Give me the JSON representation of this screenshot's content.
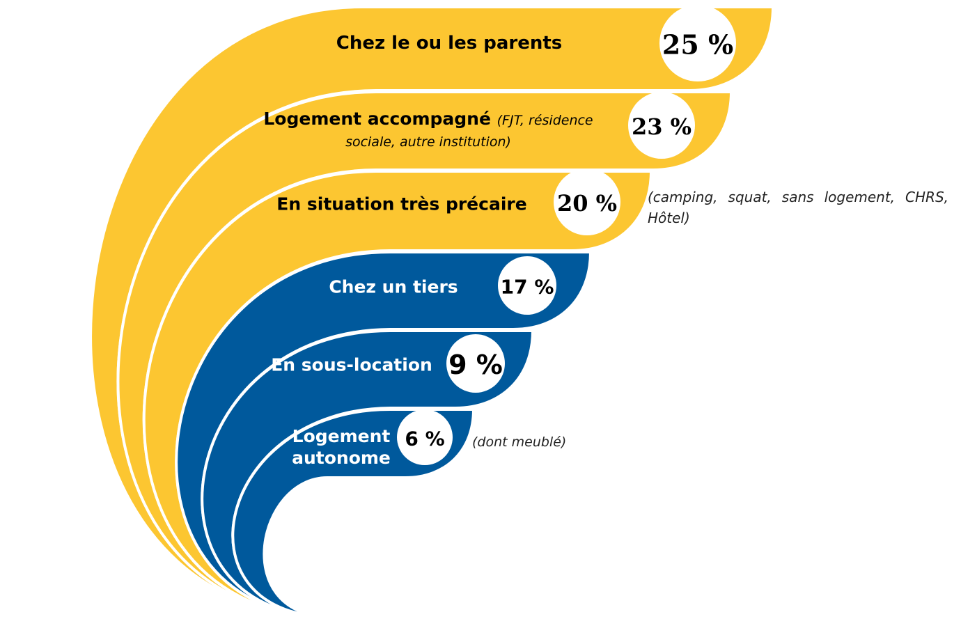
{
  "items": [
    {
      "label": "Chez le ou les parents",
      "value": "25 %"
    },
    {
      "label": "Logement accompagné",
      "note": "(FJT, résidence sociale, autre institution)",
      "value": "23 %"
    },
    {
      "label": "En situation très précaire",
      "value": "20 %",
      "side_note": "(camping, squat, sans logement, CHRS, Hôtel)"
    },
    {
      "label": "Chez un tiers",
      "value": "17 %"
    },
    {
      "label": "En sous-location",
      "value": "9 %"
    },
    {
      "label": "Logement autonome",
      "value": "6 %",
      "side_note": "(dont meublé)"
    }
  ]
}
